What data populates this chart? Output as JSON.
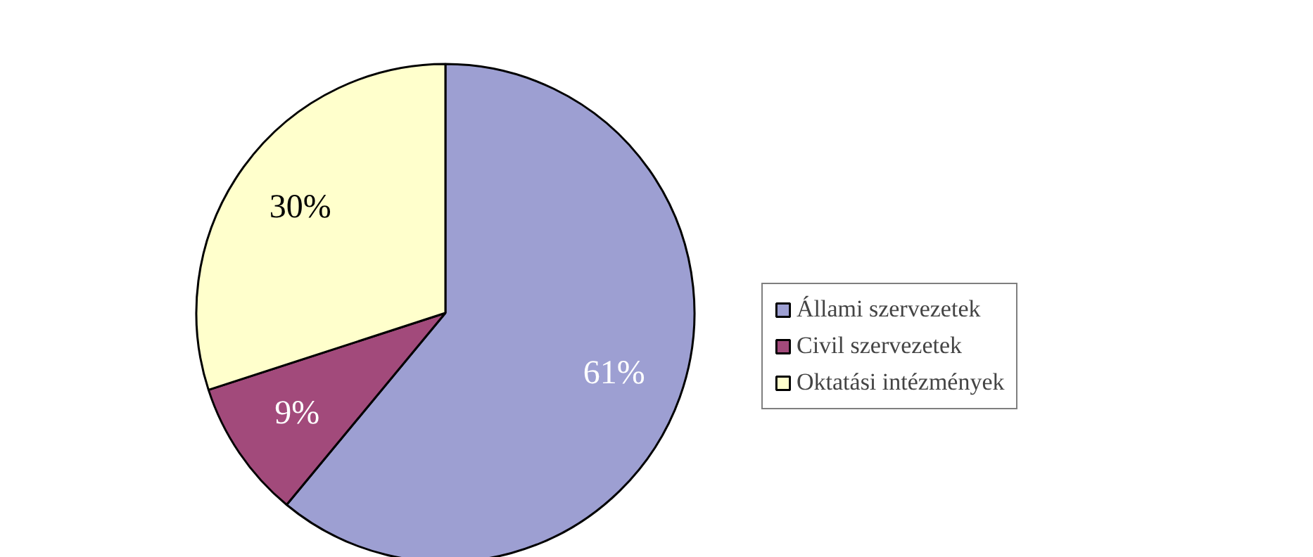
{
  "chart_data": {
    "type": "pie",
    "categories": [
      "Állami szervezetek",
      "Civil szervezetek",
      "Oktatási intézmények"
    ],
    "values": [
      61,
      9,
      30
    ],
    "colors": [
      "#9d9fd2",
      "#a24a7b",
      "#ffffcc"
    ],
    "value_labels": [
      "61%",
      "9%",
      "30%"
    ],
    "legend": "right"
  }
}
